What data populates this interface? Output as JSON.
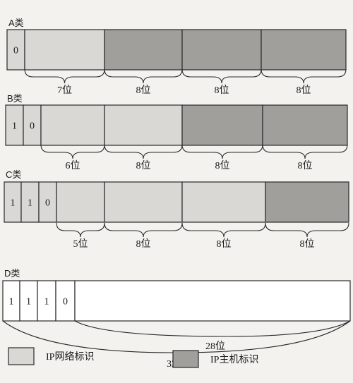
{
  "classes": [
    {
      "label": "A类",
      "cells": [
        {
          "text": "0",
          "fill": "network"
        },
        {
          "text": "",
          "fill": "network"
        },
        {
          "text": "",
          "fill": "host"
        },
        {
          "text": "",
          "fill": "host"
        },
        {
          "text": "",
          "fill": "host"
        }
      ],
      "braces": [
        "7位",
        "8位",
        "8位",
        "8位"
      ]
    },
    {
      "label": "B类",
      "cells": [
        {
          "text": "1",
          "fill": "network"
        },
        {
          "text": "0",
          "fill": "network"
        },
        {
          "text": "",
          "fill": "network"
        },
        {
          "text": "",
          "fill": "network"
        },
        {
          "text": "",
          "fill": "host"
        },
        {
          "text": "",
          "fill": "host"
        }
      ],
      "braces": [
        "6位",
        "8位",
        "8位",
        "8位"
      ]
    },
    {
      "label": "C类",
      "cells": [
        {
          "text": "1",
          "fill": "network"
        },
        {
          "text": "1",
          "fill": "network"
        },
        {
          "text": "0",
          "fill": "network"
        },
        {
          "text": "",
          "fill": "network"
        },
        {
          "text": "",
          "fill": "network"
        },
        {
          "text": "",
          "fill": "network"
        },
        {
          "text": "",
          "fill": "host"
        }
      ],
      "braces": [
        "5位",
        "8位",
        "8位",
        "8位"
      ]
    },
    {
      "label": "D类",
      "cells": [
        {
          "text": "1",
          "fill": "blank"
        },
        {
          "text": "1",
          "fill": "blank"
        },
        {
          "text": "1",
          "fill": "blank"
        },
        {
          "text": "0",
          "fill": "blank"
        },
        {
          "text": "",
          "fill": "blank"
        }
      ],
      "braces": [
        "28位",
        "32位"
      ]
    }
  ],
  "legend": [
    {
      "label": "IP网络标识",
      "fill": "network"
    },
    {
      "label": "IP主机标识",
      "fill": "host"
    }
  ],
  "colors": {
    "network": "#d9d8d4",
    "host": "#a09f9b",
    "blank": "#ffffff",
    "stroke": "#2a2a2a"
  }
}
